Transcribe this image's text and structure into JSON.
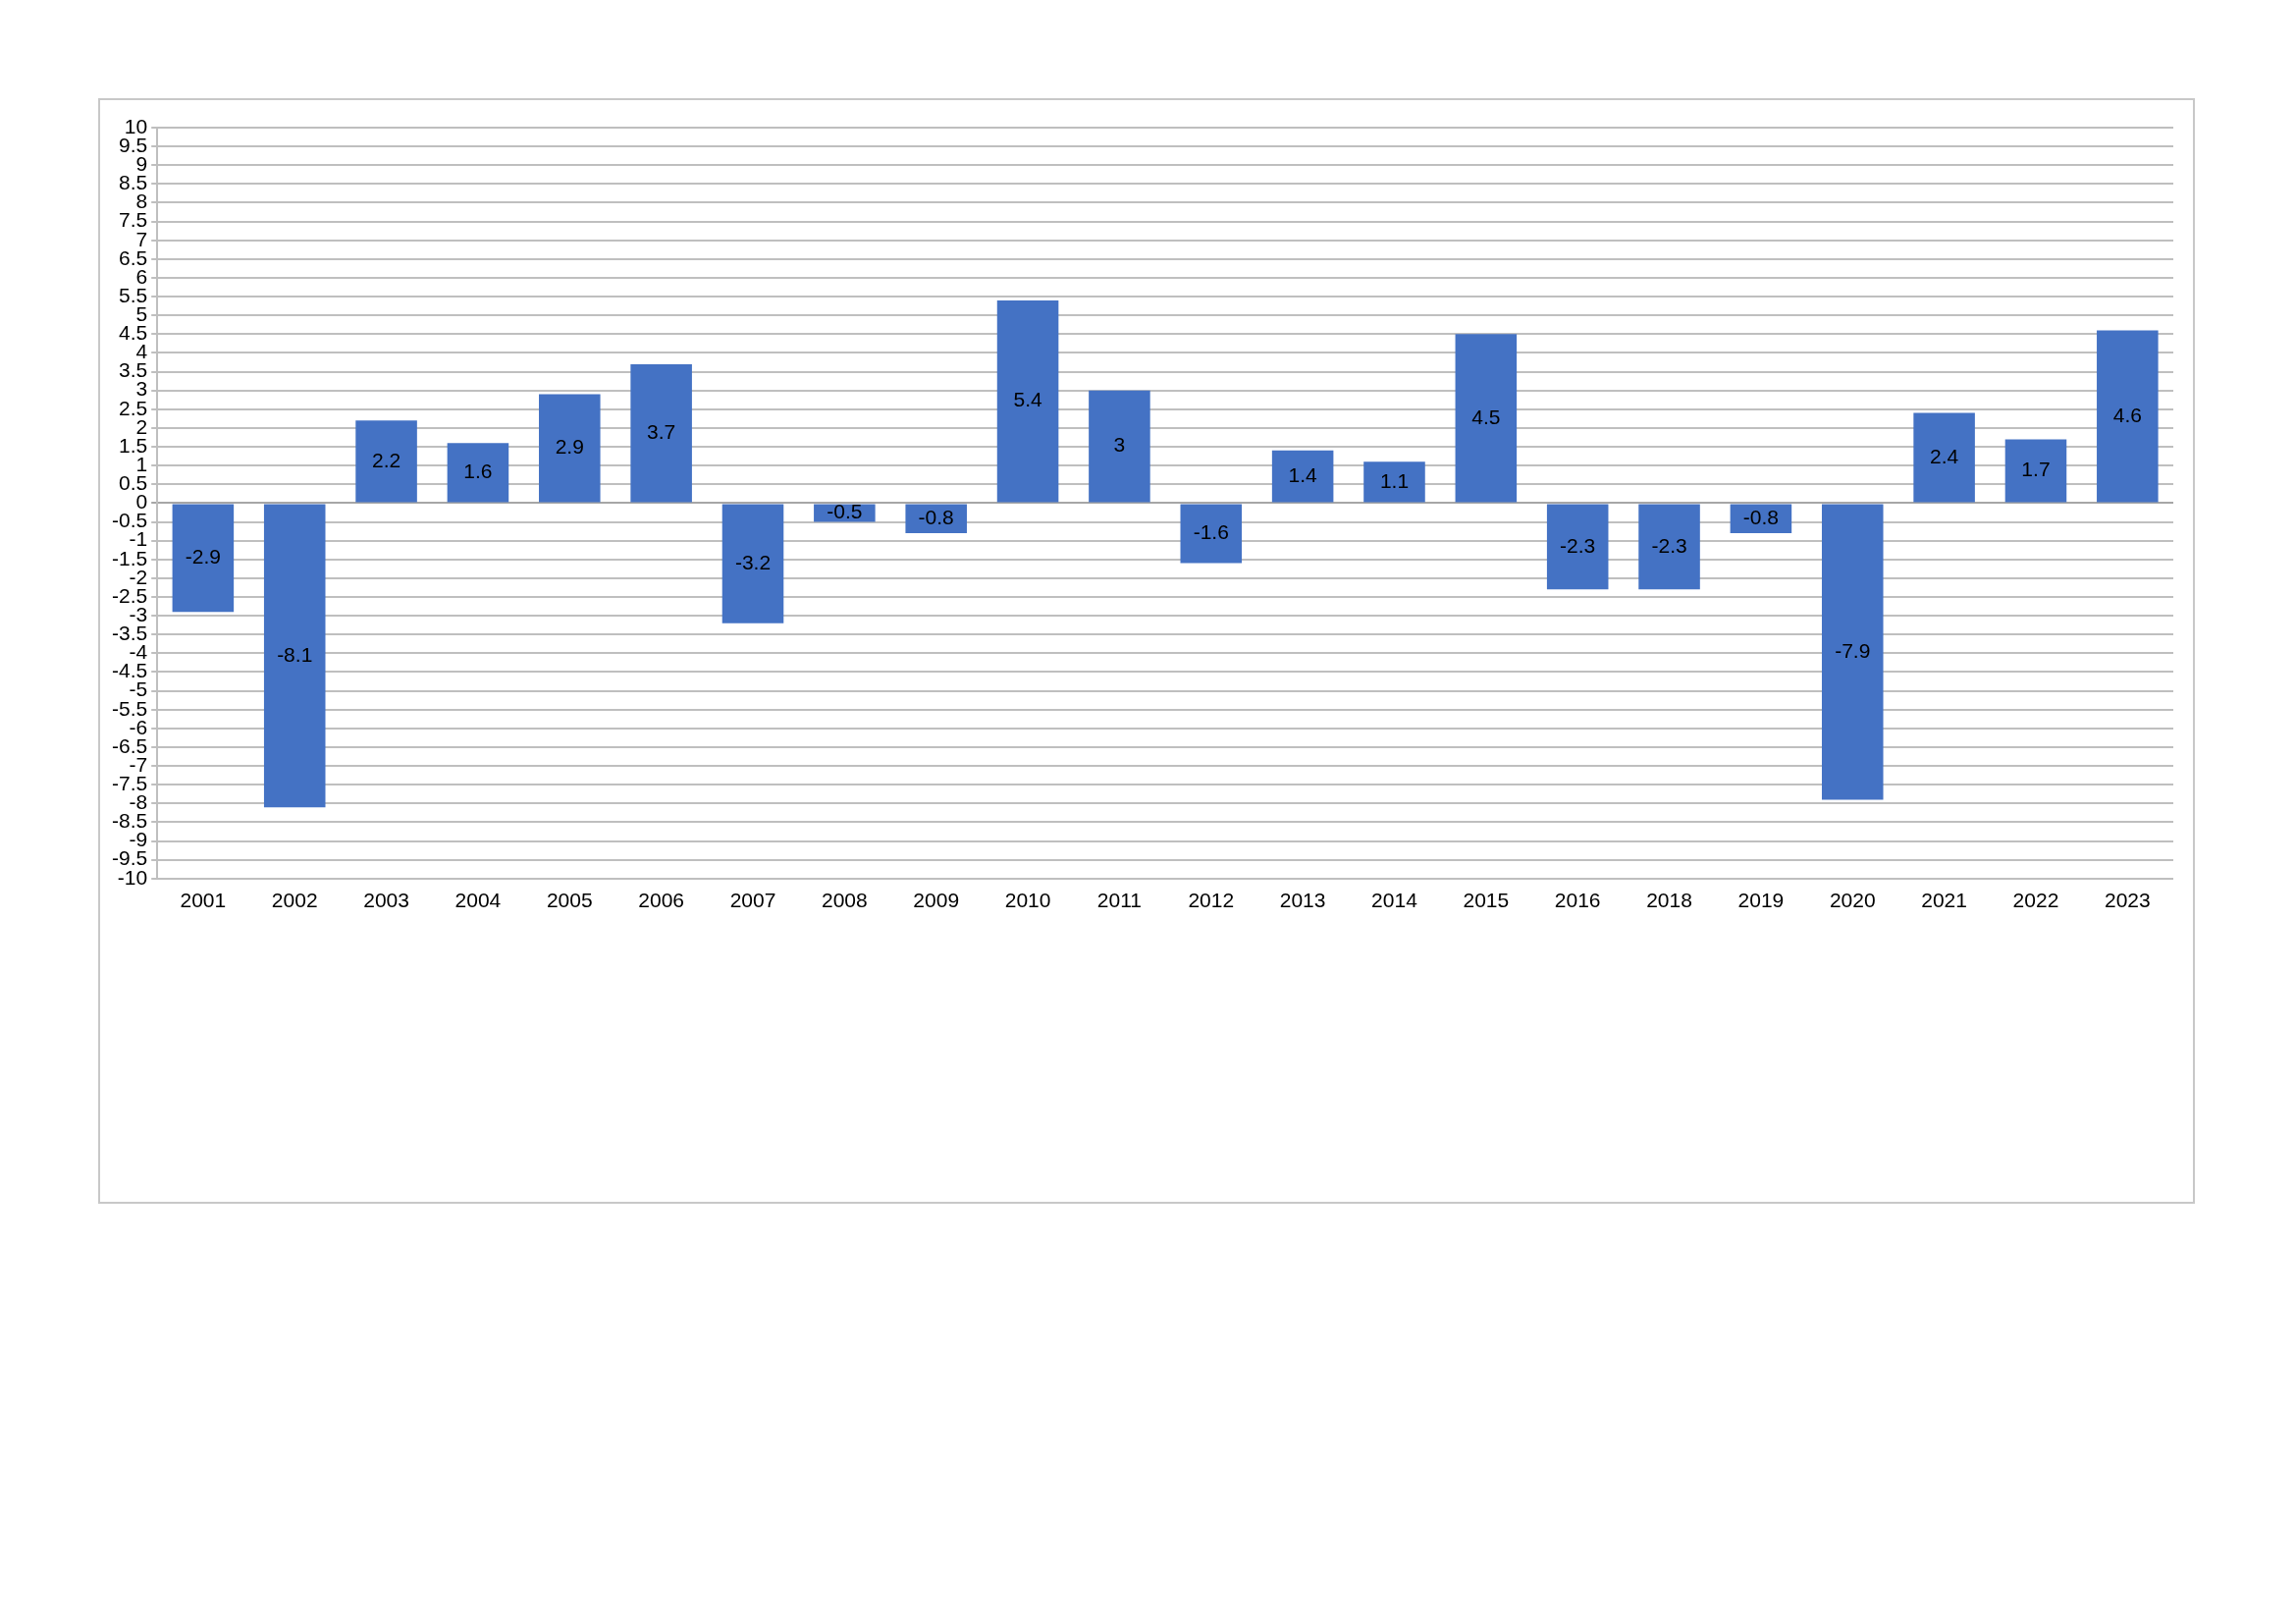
{
  "chart_data": {
    "type": "bar",
    "categories": [
      "2001",
      "2002",
      "2003",
      "2004",
      "2005",
      "2006",
      "2007",
      "2008",
      "2009",
      "2010",
      "2011",
      "2012",
      "2013",
      "2014",
      "2015",
      "2016",
      "2018",
      "2019",
      "2020",
      "2021",
      "2022",
      "2023"
    ],
    "values": [
      -2.9,
      -8.1,
      2.2,
      1.6,
      2.9,
      3.7,
      -3.2,
      -0.5,
      -0.8,
      5.4,
      3,
      -1.6,
      1.4,
      1.1,
      4.5,
      -2.3,
      -2.3,
      -0.8,
      -7.9,
      2.4,
      1.7,
      4.6
    ],
    "color": "#4472c4",
    "ylim": [
      -10,
      10
    ],
    "yticks": [
      -10,
      -9.5,
      -9,
      -8.5,
      -8,
      -7.5,
      -7,
      -6.5,
      -6,
      -5.5,
      -5,
      -4.5,
      -4,
      -3.5,
      -3,
      -2.5,
      -2,
      -1.5,
      -1,
      -0.5,
      0,
      0.5,
      1,
      1.5,
      2,
      2.5,
      3,
      3.5,
      4,
      4.5,
      5,
      5.5,
      6,
      6.5,
      7,
      7.5,
      8,
      8.5,
      9,
      9.5,
      10
    ],
    "grid": "y",
    "data_labels": true
  }
}
